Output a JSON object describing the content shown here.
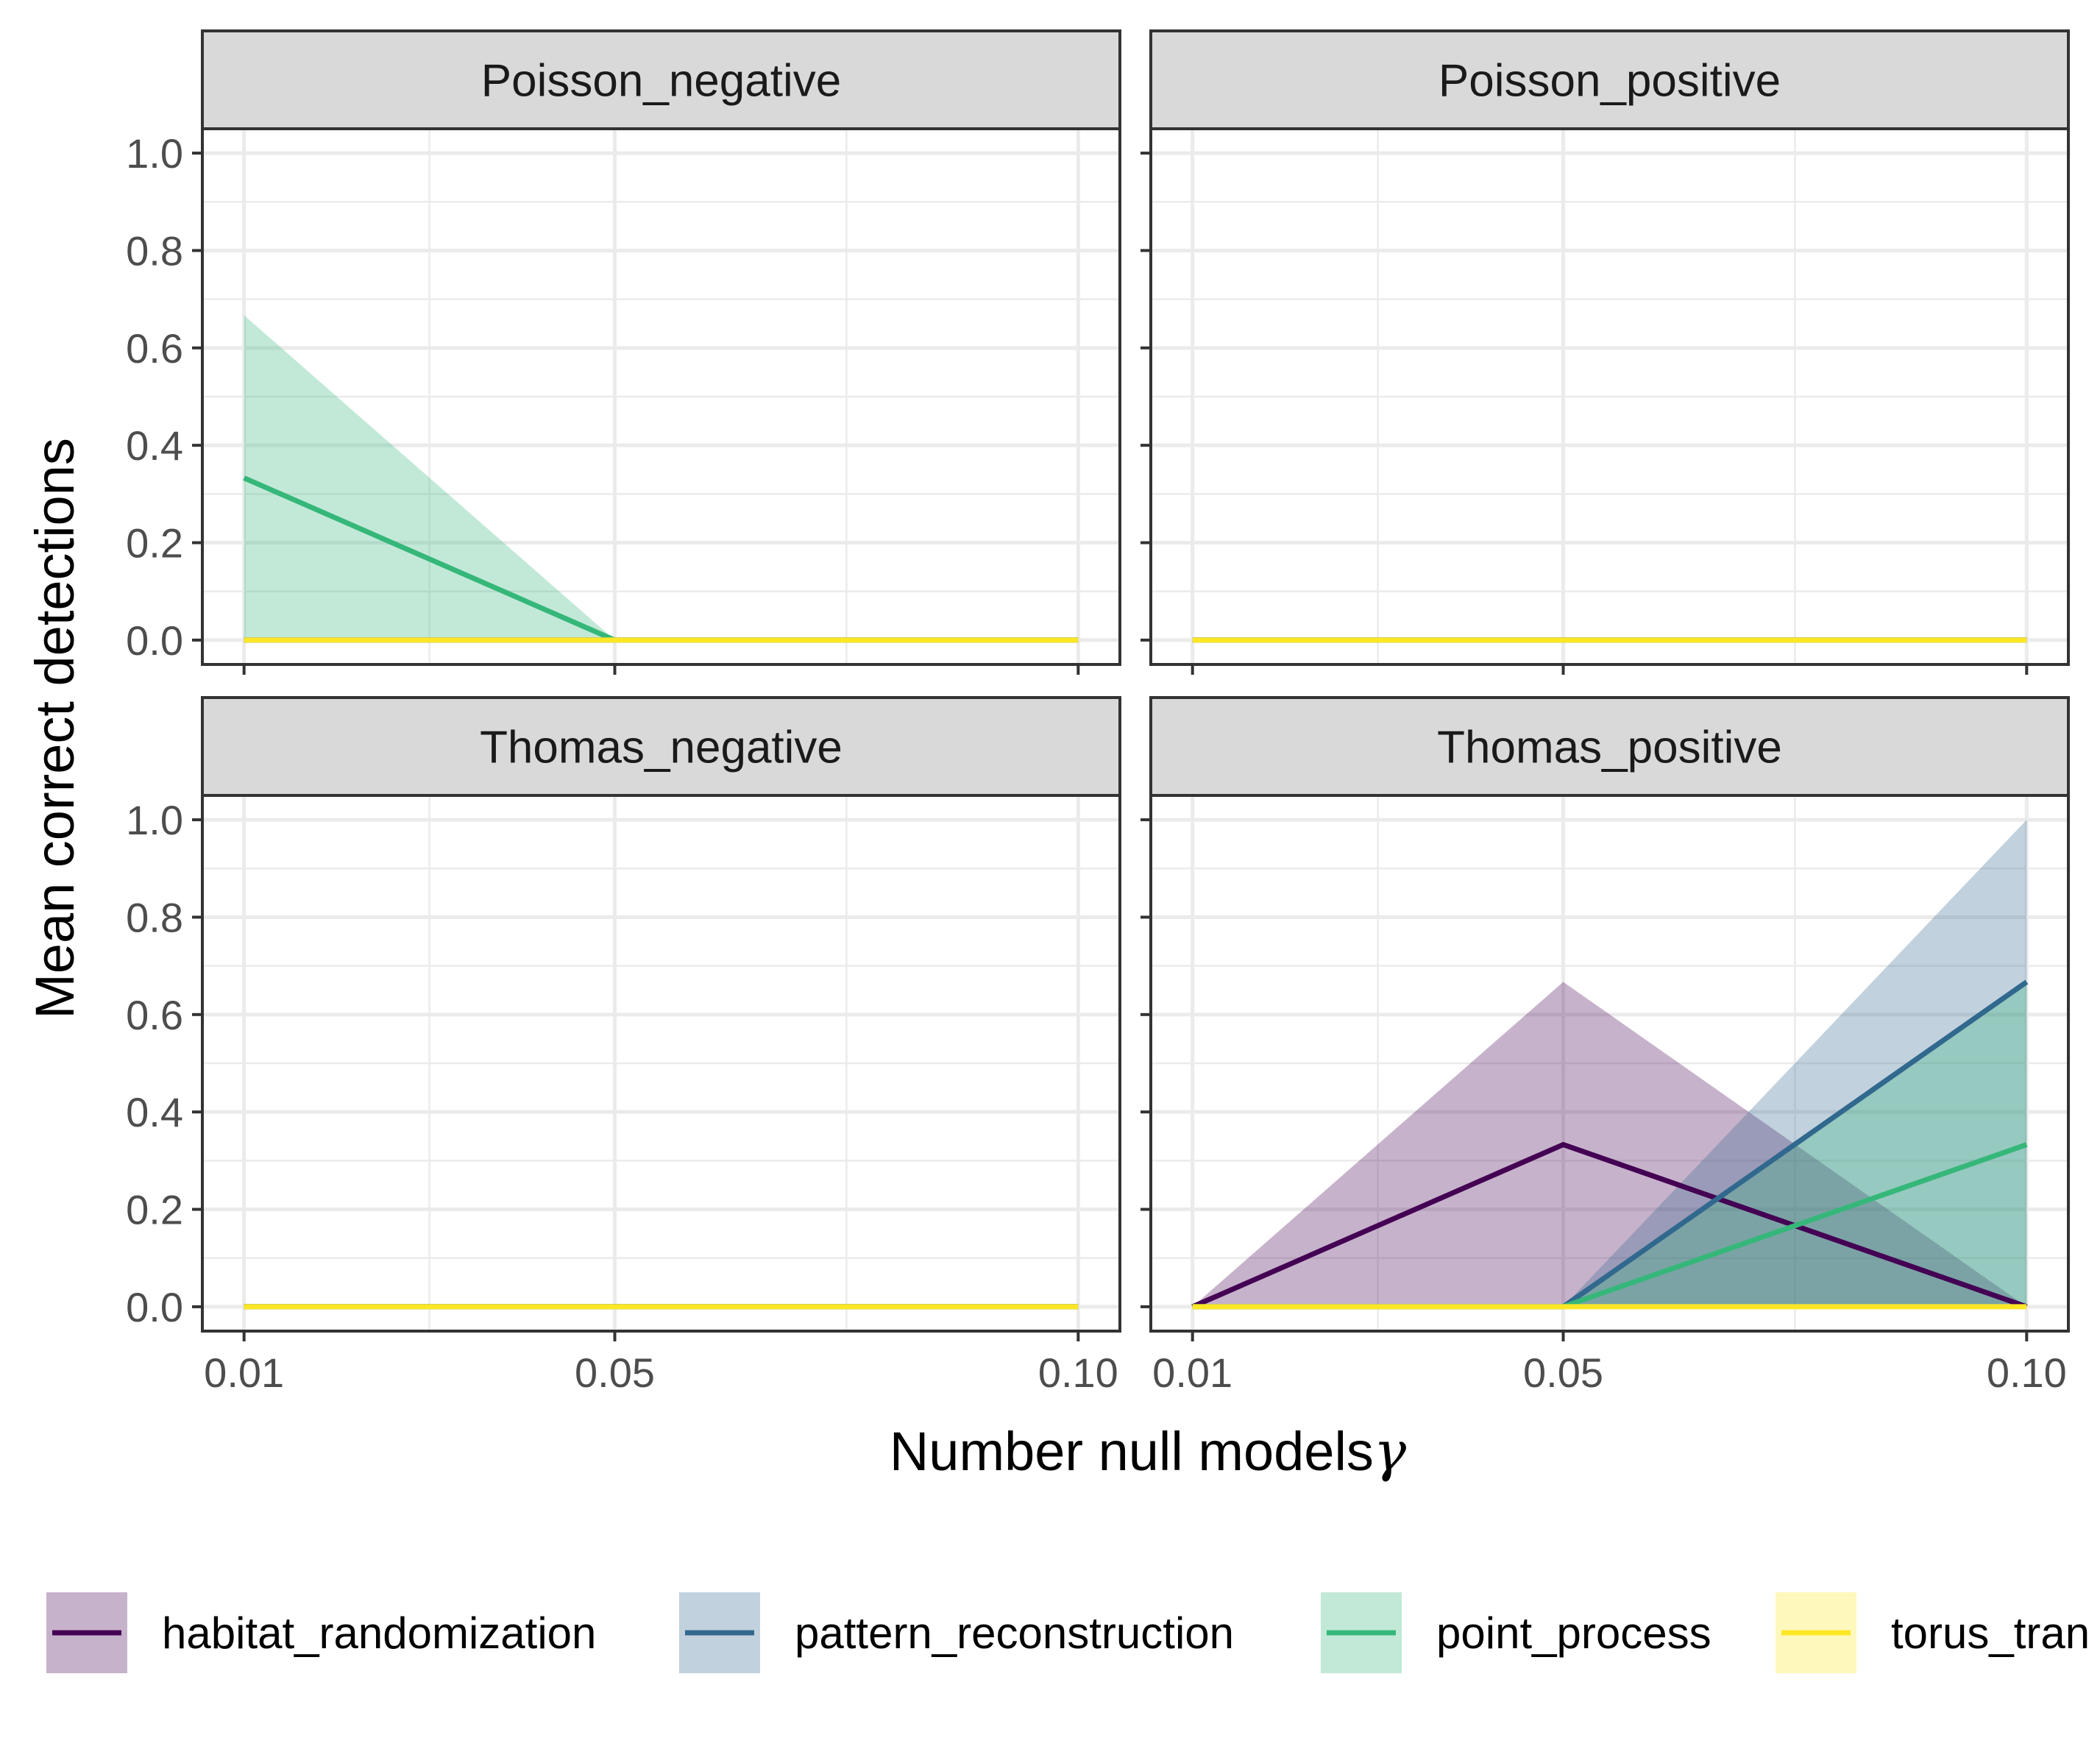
{
  "chart_data": {
    "type": "line",
    "xlabel": "Number null models",
    "xlabel_symbol": "γ",
    "ylabel": "Mean correct detections",
    "x_ticks": [
      "0.01",
      "0.05",
      "0.10"
    ],
    "y_ticks": [
      "0.0",
      "0.2",
      "0.4",
      "0.6",
      "0.8",
      "1.0"
    ],
    "xlim": [
      0.0055,
      0.1045
    ],
    "ylim": [
      -0.05,
      1.05
    ],
    "grid": true,
    "legend_position": "bottom",
    "colors": {
      "habitat_randomization": "#440154",
      "pattern_reconstruction": "#31688e",
      "point_process": "#35b779",
      "torus_translation": "#fde725"
    },
    "series_names": [
      "habitat_randomization",
      "pattern_reconstruction",
      "point_process",
      "torus_translation"
    ],
    "legend_labels": [
      "habitat_randomization",
      "pattern_reconstruction",
      "point_process",
      "torus_tran"
    ],
    "panels": [
      {
        "title": "Poisson_negative",
        "series": [
          {
            "name": "habitat_randomization",
            "x": [
              0.01,
              0.05,
              0.1
            ],
            "mean": [
              0,
              0,
              0
            ],
            "lower": [
              0,
              0,
              0
            ],
            "upper": [
              0,
              0,
              0
            ]
          },
          {
            "name": "pattern_reconstruction",
            "x": [
              0.01,
              0.05,
              0.1
            ],
            "mean": [
              0,
              0,
              0
            ],
            "lower": [
              0,
              0,
              0
            ],
            "upper": [
              0,
              0,
              0
            ]
          },
          {
            "name": "point_process",
            "x": [
              0.01,
              0.05,
              0.1
            ],
            "mean": [
              0.333,
              0,
              0
            ],
            "lower": [
              0,
              0,
              0
            ],
            "upper": [
              0.667,
              0,
              0
            ]
          },
          {
            "name": "torus_translation",
            "x": [
              0.01,
              0.05,
              0.1
            ],
            "mean": [
              0,
              0,
              0
            ],
            "lower": [
              0,
              0,
              0
            ],
            "upper": [
              0,
              0,
              0
            ]
          }
        ]
      },
      {
        "title": "Poisson_positive",
        "series": [
          {
            "name": "habitat_randomization",
            "x": [
              0.01,
              0.05,
              0.1
            ],
            "mean": [
              0,
              0,
              0
            ],
            "lower": [
              0,
              0,
              0
            ],
            "upper": [
              0,
              0,
              0
            ]
          },
          {
            "name": "pattern_reconstruction",
            "x": [
              0.01,
              0.05,
              0.1
            ],
            "mean": [
              0,
              0,
              0
            ],
            "lower": [
              0,
              0,
              0
            ],
            "upper": [
              0,
              0,
              0
            ]
          },
          {
            "name": "point_process",
            "x": [
              0.01,
              0.05,
              0.1
            ],
            "mean": [
              0,
              0,
              0
            ],
            "lower": [
              0,
              0,
              0
            ],
            "upper": [
              0,
              0,
              0
            ]
          },
          {
            "name": "torus_translation",
            "x": [
              0.01,
              0.05,
              0.1
            ],
            "mean": [
              0,
              0,
              0
            ],
            "lower": [
              0,
              0,
              0
            ],
            "upper": [
              0,
              0,
              0
            ]
          }
        ]
      },
      {
        "title": "Thomas_negative",
        "series": [
          {
            "name": "habitat_randomization",
            "x": [
              0.01,
              0.05,
              0.1
            ],
            "mean": [
              0,
              0,
              0
            ],
            "lower": [
              0,
              0,
              0
            ],
            "upper": [
              0,
              0,
              0
            ]
          },
          {
            "name": "pattern_reconstruction",
            "x": [
              0.01,
              0.05,
              0.1
            ],
            "mean": [
              0,
              0,
              0
            ],
            "lower": [
              0,
              0,
              0
            ],
            "upper": [
              0,
              0,
              0
            ]
          },
          {
            "name": "point_process",
            "x": [
              0.01,
              0.05,
              0.1
            ],
            "mean": [
              0,
              0,
              0
            ],
            "lower": [
              0,
              0,
              0
            ],
            "upper": [
              0,
              0,
              0
            ]
          },
          {
            "name": "torus_translation",
            "x": [
              0.01,
              0.05,
              0.1
            ],
            "mean": [
              0,
              0,
              0
            ],
            "lower": [
              0,
              0,
              0
            ],
            "upper": [
              0,
              0,
              0
            ]
          }
        ]
      },
      {
        "title": "Thomas_positive",
        "series": [
          {
            "name": "habitat_randomization",
            "x": [
              0.01,
              0.05,
              0.1
            ],
            "mean": [
              0,
              0.333,
              0
            ],
            "lower": [
              0,
              0,
              0
            ],
            "upper": [
              0,
              0.667,
              0
            ]
          },
          {
            "name": "pattern_reconstruction",
            "x": [
              0.01,
              0.05,
              0.1
            ],
            "mean": [
              0,
              0,
              0.667
            ],
            "lower": [
              0,
              0,
              0
            ],
            "upper": [
              0,
              0,
              1.0
            ]
          },
          {
            "name": "point_process",
            "x": [
              0.01,
              0.05,
              0.1
            ],
            "mean": [
              0,
              0,
              0.333
            ],
            "lower": [
              0,
              0,
              0
            ],
            "upper": [
              0,
              0,
              0.667
            ]
          },
          {
            "name": "torus_translation",
            "x": [
              0.01,
              0.05,
              0.1
            ],
            "mean": [
              0,
              0,
              0
            ],
            "lower": [
              0,
              0,
              0
            ],
            "upper": [
              0,
              0,
              0
            ]
          }
        ]
      }
    ]
  }
}
